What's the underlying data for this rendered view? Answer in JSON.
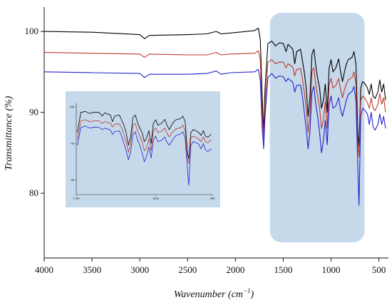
{
  "chart_data": {
    "type": "line",
    "xlabel": "Wavenumber (cm",
    "xlabel_sup": "−1",
    "xlabel_close": ")",
    "ylabel": "Transmittance (%)",
    "x_reversed": true,
    "xlim": [
      4000,
      400
    ],
    "ylim": [
      72,
      103
    ],
    "x_ticks": [
      4000,
      3500,
      3000,
      2500,
      2000,
      1500,
      1000,
      500
    ],
    "y_ticks": [
      80,
      90,
      100
    ],
    "grid": false,
    "highlight_region": {
      "x_from": 1640,
      "x_to": 650,
      "color": "#c5d9ea"
    },
    "series": [
      {
        "color": "#000000",
        "points": [
          [
            4000,
            100
          ],
          [
            3500,
            99.9
          ],
          [
            3000,
            99.6
          ],
          [
            2950,
            99.1
          ],
          [
            2900,
            99.5
          ],
          [
            2500,
            99.6
          ],
          [
            2300,
            99.7
          ],
          [
            2200,
            100
          ],
          [
            2150,
            99.7
          ],
          [
            2050,
            99.8
          ],
          [
            1800,
            100.1
          ],
          [
            1760,
            100.4
          ],
          [
            1740,
            99
          ],
          [
            1720,
            92
          ],
          [
            1705,
            87.5
          ],
          [
            1690,
            93
          ],
          [
            1660,
            98.5
          ],
          [
            1620,
            98.8
          ],
          [
            1580,
            98.2
          ],
          [
            1540,
            98.6
          ],
          [
            1500,
            98.5
          ],
          [
            1470,
            97.5
          ],
          [
            1450,
            98.4
          ],
          [
            1400,
            97.8
          ],
          [
            1380,
            96
          ],
          [
            1360,
            97.5
          ],
          [
            1320,
            97.8
          ],
          [
            1300,
            96.4
          ],
          [
            1280,
            95
          ],
          [
            1260,
            93
          ],
          [
            1240,
            89.5
          ],
          [
            1220,
            92
          ],
          [
            1200,
            97.2
          ],
          [
            1180,
            97.8
          ],
          [
            1160,
            95.8
          ],
          [
            1140,
            94.2
          ],
          [
            1120,
            93
          ],
          [
            1100,
            90.5
          ],
          [
            1080,
            91.5
          ],
          [
            1060,
            93.5
          ],
          [
            1040,
            90
          ],
          [
            1020,
            95.5
          ],
          [
            1000,
            96.5
          ],
          [
            980,
            95
          ],
          [
            950,
            95.5
          ],
          [
            920,
            96.6
          ],
          [
            900,
            95
          ],
          [
            880,
            93.8
          ],
          [
            860,
            95
          ],
          [
            840,
            96
          ],
          [
            820,
            96.5
          ],
          [
            780,
            96.8
          ],
          [
            760,
            97.5
          ],
          [
            740,
            96
          ],
          [
            720,
            87.5
          ],
          [
            708,
            85.8
          ],
          [
            700,
            89
          ],
          [
            690,
            93
          ],
          [
            670,
            93.8
          ],
          [
            650,
            93.6
          ],
          [
            620,
            93
          ],
          [
            600,
            92.2
          ],
          [
            580,
            93.5
          ],
          [
            560,
            92
          ],
          [
            540,
            91.7
          ],
          [
            510,
            92.5
          ],
          [
            490,
            94
          ],
          [
            470,
            92.5
          ],
          [
            450,
            93.5
          ],
          [
            430,
            91.5
          ]
        ]
      },
      {
        "color": "#c0392b",
        "points": [
          [
            4000,
            97.4
          ],
          [
            3500,
            97.3
          ],
          [
            3000,
            97.2
          ],
          [
            2950,
            96.8
          ],
          [
            2900,
            97.2
          ],
          [
            2500,
            97.1
          ],
          [
            2300,
            97.1
          ],
          [
            2200,
            97.4
          ],
          [
            2150,
            97.1
          ],
          [
            2050,
            97.2
          ],
          [
            1800,
            97.3
          ],
          [
            1760,
            97.6
          ],
          [
            1740,
            96.5
          ],
          [
            1720,
            90
          ],
          [
            1705,
            86.7
          ],
          [
            1690,
            91
          ],
          [
            1660,
            96.2
          ],
          [
            1620,
            96.5
          ],
          [
            1580,
            96
          ],
          [
            1540,
            96.2
          ],
          [
            1500,
            96.2
          ],
          [
            1470,
            95.5
          ],
          [
            1450,
            96
          ],
          [
            1400,
            95.6
          ],
          [
            1380,
            94.5
          ],
          [
            1360,
            95.3
          ],
          [
            1320,
            95.4
          ],
          [
            1300,
            94.2
          ],
          [
            1280,
            92.5
          ],
          [
            1260,
            90.5
          ],
          [
            1240,
            87.5
          ],
          [
            1220,
            90
          ],
          [
            1200,
            95
          ],
          [
            1180,
            95.5
          ],
          [
            1160,
            93.5
          ],
          [
            1140,
            92
          ],
          [
            1120,
            90.5
          ],
          [
            1100,
            88
          ],
          [
            1080,
            89
          ],
          [
            1060,
            91.3
          ],
          [
            1040,
            88
          ],
          [
            1020,
            93.5
          ],
          [
            1000,
            94.2
          ],
          [
            980,
            93
          ],
          [
            950,
            93.3
          ],
          [
            920,
            94.2
          ],
          [
            900,
            92.8
          ],
          [
            880,
            91.8
          ],
          [
            860,
            92.8
          ],
          [
            840,
            93.5
          ],
          [
            820,
            94
          ],
          [
            780,
            94.3
          ],
          [
            760,
            95
          ],
          [
            740,
            93.5
          ],
          [
            720,
            86
          ],
          [
            708,
            84.5
          ],
          [
            700,
            87.5
          ],
          [
            690,
            91.5
          ],
          [
            670,
            92
          ],
          [
            650,
            91.8
          ],
          [
            620,
            91.2
          ],
          [
            600,
            90.5
          ],
          [
            580,
            91.8
          ],
          [
            560,
            90.5
          ],
          [
            540,
            90.2
          ],
          [
            510,
            91
          ],
          [
            490,
            92.3
          ],
          [
            470,
            91
          ],
          [
            450,
            91.8
          ],
          [
            430,
            90
          ]
        ]
      },
      {
        "color": "#2222cc",
        "points": [
          [
            4000,
            95
          ],
          [
            3500,
            94.9
          ],
          [
            3000,
            94.8
          ],
          [
            2950,
            94.3
          ],
          [
            2900,
            94.7
          ],
          [
            2500,
            94.7
          ],
          [
            2300,
            94.8
          ],
          [
            2200,
            95.1
          ],
          [
            2150,
            94.7
          ],
          [
            2050,
            94.9
          ],
          [
            1800,
            95
          ],
          [
            1760,
            95.3
          ],
          [
            1740,
            94
          ],
          [
            1720,
            88
          ],
          [
            1705,
            85.5
          ],
          [
            1690,
            89.5
          ],
          [
            1660,
            94.3
          ],
          [
            1620,
            94.8
          ],
          [
            1580,
            94.2
          ],
          [
            1540,
            94.5
          ],
          [
            1500,
            94.4
          ],
          [
            1470,
            93.8
          ],
          [
            1450,
            94.2
          ],
          [
            1400,
            93.7
          ],
          [
            1380,
            92.5
          ],
          [
            1360,
            93.3
          ],
          [
            1320,
            93.4
          ],
          [
            1300,
            92
          ],
          [
            1280,
            90
          ],
          [
            1260,
            88
          ],
          [
            1240,
            85.5
          ],
          [
            1220,
            87.8
          ],
          [
            1200,
            92.5
          ],
          [
            1180,
            93.2
          ],
          [
            1160,
            91
          ],
          [
            1140,
            89.5
          ],
          [
            1120,
            87.5
          ],
          [
            1100,
            85
          ],
          [
            1080,
            86.5
          ],
          [
            1060,
            89
          ],
          [
            1040,
            86
          ],
          [
            1020,
            91
          ],
          [
            1000,
            92
          ],
          [
            980,
            90.5
          ],
          [
            950,
            90.8
          ],
          [
            920,
            91.8
          ],
          [
            900,
            90.3
          ],
          [
            880,
            89.5
          ],
          [
            860,
            90.5
          ],
          [
            840,
            91.5
          ],
          [
            820,
            92.2
          ],
          [
            780,
            92.6
          ],
          [
            760,
            93.2
          ],
          [
            740,
            91.5
          ],
          [
            720,
            83
          ],
          [
            708,
            78.5
          ],
          [
            700,
            83.5
          ],
          [
            690,
            89.5
          ],
          [
            670,
            90.5
          ],
          [
            650,
            90.3
          ],
          [
            620,
            89.8
          ],
          [
            600,
            88.5
          ],
          [
            580,
            90
          ],
          [
            560,
            88.2
          ],
          [
            540,
            87.8
          ],
          [
            510,
            88.5
          ],
          [
            490,
            89.8
          ],
          [
            470,
            88.5
          ],
          [
            450,
            89.5
          ],
          [
            430,
            88
          ]
        ]
      }
    ],
    "inset": {
      "xlim": [
        1700,
        500
      ],
      "x_ticks": [
        1700,
        1000,
        500
      ],
      "ylim": [
        76,
        101
      ],
      "y_ticks": [
        80,
        90,
        100
      ],
      "y_tick_labels": [
        "80",
        "90",
        "100"
      ],
      "x_tick_labels": [
        "1700",
        "1000",
        "500"
      ]
    }
  }
}
